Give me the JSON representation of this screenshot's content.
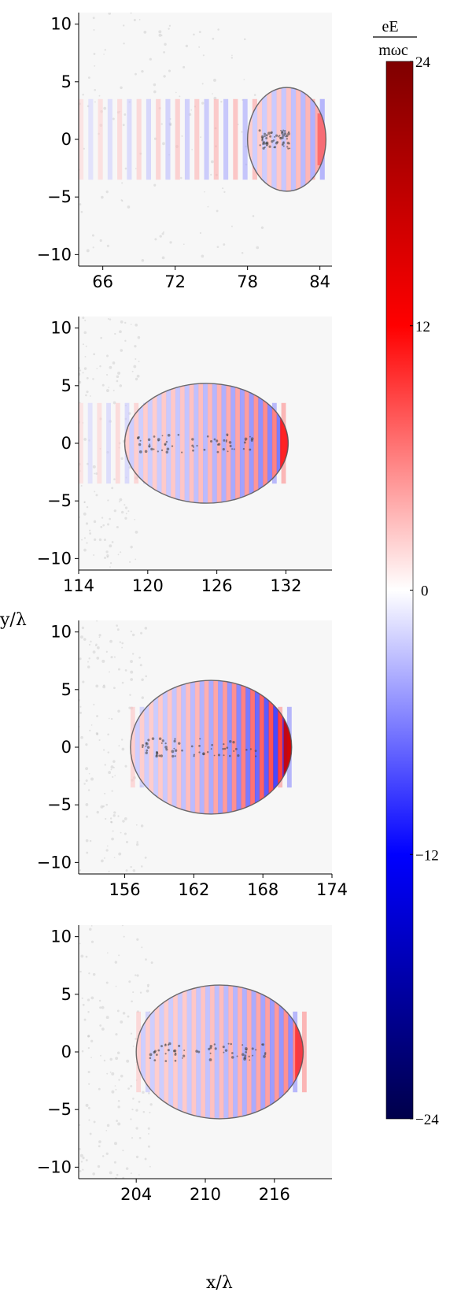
{
  "chart_data": {
    "type": "heatmap",
    "xlabel": "x/λ",
    "ylabel": "y/λ",
    "colorbar": {
      "label_top": "eE",
      "label_bottom": "mωc",
      "range": [
        -24,
        24
      ],
      "ticks": [
        "24",
        "12",
        "0",
        "−12",
        "−24"
      ],
      "colors": {
        "max": "#7f0000",
        "mid_high": "#ff0000",
        "zero": "#ffffff",
        "mid_low": "#0000ff",
        "min": "#00004a"
      }
    },
    "panels": [
      {
        "name": "panel-1",
        "xlim": [
          64,
          85
        ],
        "ylim": [
          -11,
          11
        ],
        "xticks": [
          66,
          72,
          78,
          84
        ],
        "xtick_labels": [
          "66",
          "72",
          "78",
          "84"
        ],
        "yticks": [
          10,
          5,
          0,
          -5,
          -10
        ],
        "ytick_labels": [
          "10",
          "5",
          "0",
          "−5",
          "−10"
        ],
        "bubble": {
          "x_front": 84.5,
          "x_back": 78,
          "half_width": 4.5
        },
        "wave_region": [
          64,
          84.5
        ],
        "peak_field": 6
      },
      {
        "name": "panel-2",
        "xlim": [
          114,
          136
        ],
        "ylim": [
          -11,
          11
        ],
        "xticks": [
          114,
          120,
          126,
          132
        ],
        "xtick_labels": [
          "114",
          "120",
          "126",
          "132"
        ],
        "yticks": [
          10,
          5,
          0,
          -5,
          -10
        ],
        "ytick_labels": [
          "10",
          "5",
          "0",
          "−5",
          "−10"
        ],
        "bubble": {
          "x_front": 132.2,
          "x_back": 118,
          "half_width": 5.2
        },
        "wave_region": [
          114,
          132.2
        ],
        "peak_field": 9
      },
      {
        "name": "panel-3",
        "xlim": [
          152,
          174
        ],
        "ylim": [
          -11,
          11
        ],
        "xticks": [
          156,
          162,
          168,
          174
        ],
        "xtick_labels": [
          "156",
          "162",
          "168",
          "174"
        ],
        "yticks": [
          10,
          5,
          0,
          -5,
          -10
        ],
        "ytick_labels": [
          "10",
          "5",
          "0",
          "−5",
          "−10"
        ],
        "bubble": {
          "x_front": 170.5,
          "x_back": 156.5,
          "half_width": 5.8
        },
        "wave_region": [
          156.5,
          170.5
        ],
        "peak_field": 14
      },
      {
        "name": "panel-4",
        "xlim": [
          199,
          221
        ],
        "ylim": [
          -11,
          11
        ],
        "xticks": [
          204,
          210,
          216
        ],
        "xtick_labels": [
          "204",
          "210",
          "216"
        ],
        "yticks": [
          10,
          5,
          0,
          -5,
          -10
        ],
        "ytick_labels": [
          "10",
          "5",
          "0",
          "−5",
          "−10"
        ],
        "bubble": {
          "x_front": 218.5,
          "x_back": 204,
          "half_width": 5.8
        },
        "wave_region": [
          204,
          218.5
        ],
        "peak_field": 8
      }
    ]
  }
}
